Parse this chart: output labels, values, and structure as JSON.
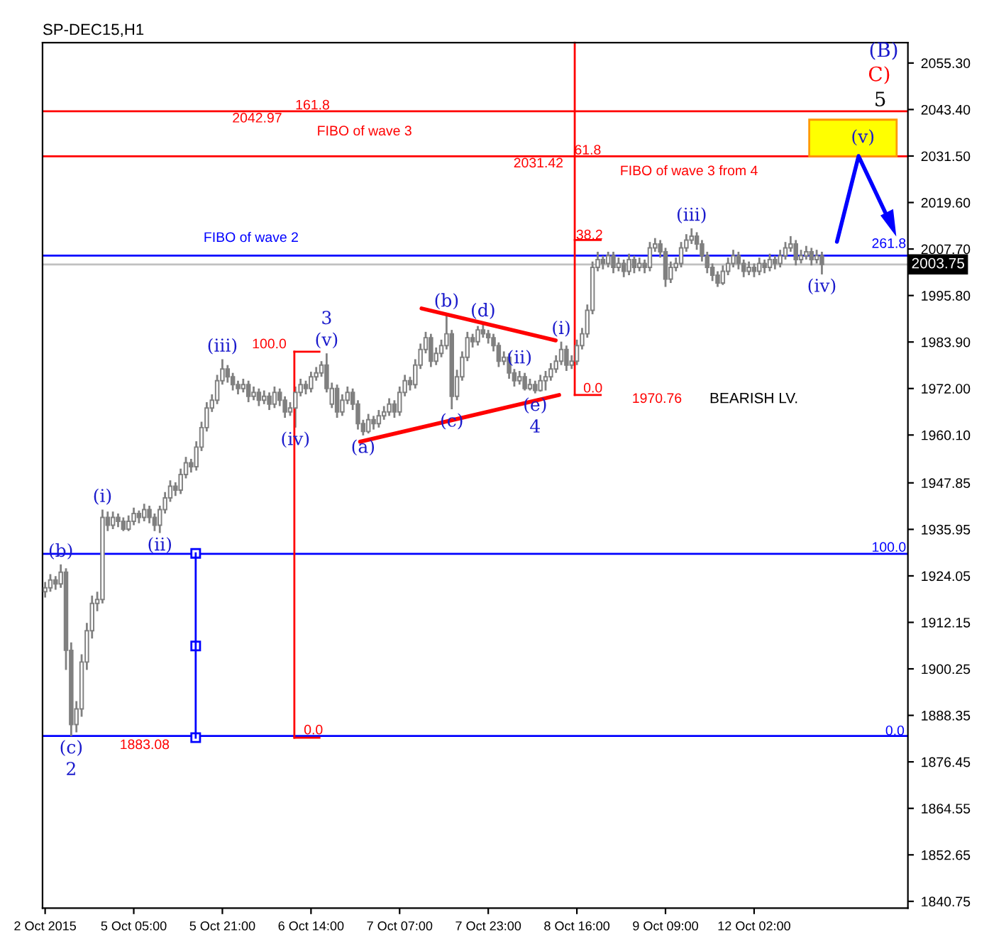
{
  "chart_data": {
    "type": "candlestick",
    "title": "SP-DEC15,H1",
    "color": "#808080",
    "categories": [
      "2 Oct 2015",
      null,
      null,
      null,
      null,
      null,
      null,
      null,
      null,
      null,
      null,
      null,
      null,
      null,
      null,
      null,
      null,
      "5 Oct 05:00",
      null,
      null,
      null,
      null,
      null,
      null,
      null,
      null,
      null,
      null,
      null,
      null,
      null,
      null,
      null,
      null,
      "5 Oct 21:00",
      null,
      null,
      null,
      null,
      null,
      null,
      null,
      null,
      null,
      null,
      null,
      null,
      null,
      null,
      null,
      null,
      "6 Oct 14:00",
      null,
      null,
      null,
      null,
      null,
      null,
      null,
      null,
      null,
      null,
      null,
      null,
      null,
      null,
      null,
      null,
      "7 Oct 07:00",
      null,
      null,
      null,
      null,
      null,
      null,
      null,
      null,
      null,
      null,
      null,
      null,
      null,
      null,
      null,
      null,
      "7 Oct 23:00",
      null,
      null,
      null,
      null,
      null,
      null,
      null,
      null,
      null,
      null,
      null,
      null,
      null,
      null,
      null,
      null,
      "8 Oct 16:00",
      null,
      null,
      null,
      null,
      null,
      null,
      null,
      null,
      null,
      null,
      null,
      null,
      null,
      null,
      null,
      null,
      "9 Oct 09:00",
      null,
      null,
      null,
      null,
      null,
      null,
      null,
      null,
      null,
      null,
      null,
      null,
      null,
      null,
      null,
      null,
      "12 Oct 02:00",
      null,
      null,
      null,
      null,
      null,
      null,
      null,
      null,
      null,
      null,
      null,
      null,
      null,
      null,
      null,
      null,
      null,
      null,
      null,
      null,
      null,
      null,
      null,
      null,
      null,
      null,
      null,
      null,
      null
    ],
    "ohlc": [
      [
        1920,
        1922.5,
        1918.5,
        1921
      ],
      [
        1921,
        1924.5,
        1920,
        1923
      ],
      [
        1923,
        1924,
        1920.5,
        1922
      ],
      [
        1922,
        1927,
        1921,
        1925
      ],
      [
        1925,
        1926,
        1900,
        1905
      ],
      [
        1905,
        1907,
        1883.08,
        1886
      ],
      [
        1886,
        1892,
        1884,
        1890
      ],
      [
        1890,
        1904,
        1888,
        1902
      ],
      [
        1902,
        1912,
        1900,
        1910
      ],
      [
        1910,
        1919,
        1908,
        1917
      ],
      [
        1917,
        1920,
        1915,
        1918
      ],
      [
        1918,
        1941,
        1917,
        1939
      ],
      [
        1939,
        1940.5,
        1935.5,
        1937
      ],
      [
        1937,
        1940.5,
        1936,
        1939
      ],
      [
        1939,
        1940,
        1936.5,
        1938
      ],
      [
        1938,
        1939,
        1935.5,
        1936
      ],
      [
        1936,
        1939.5,
        1935.5,
        1938
      ],
      [
        1938,
        1941.5,
        1937,
        1940
      ],
      [
        1940,
        1940.8,
        1937.5,
        1939
      ],
      [
        1939,
        1942.5,
        1938,
        1941
      ],
      [
        1941,
        1942,
        1937.5,
        1939
      ],
      [
        1939,
        1940,
        1935.5,
        1937
      ],
      [
        1937,
        1942,
        1935,
        1941
      ],
      [
        1941,
        1945.5,
        1940,
        1944
      ],
      [
        1944,
        1948.5,
        1943,
        1947
      ],
      [
        1947,
        1948,
        1944.5,
        1946
      ],
      [
        1946,
        1951.5,
        1945,
        1950
      ],
      [
        1950,
        1954.5,
        1949,
        1953
      ],
      [
        1953,
        1954,
        1950.5,
        1952
      ],
      [
        1952,
        1958.5,
        1951,
        1957
      ],
      [
        1957,
        1963.5,
        1956,
        1962
      ],
      [
        1962,
        1968.5,
        1961,
        1967
      ],
      [
        1967,
        1970.5,
        1966,
        1969
      ],
      [
        1969,
        1975.5,
        1968,
        1974
      ],
      [
        1974,
        1979.5,
        1973,
        1977
      ],
      [
        1977,
        1978,
        1973.5,
        1975
      ],
      [
        1975,
        1976,
        1971.5,
        1973
      ],
      [
        1973,
        1974,
        1970.5,
        1972
      ],
      [
        1972,
        1974.5,
        1971,
        1973
      ],
      [
        1973,
        1974,
        1968.5,
        1970
      ],
      [
        1970,
        1972.5,
        1969,
        1971
      ],
      [
        1971,
        1972,
        1967.5,
        1969
      ],
      [
        1969,
        1971.5,
        1968,
        1970
      ],
      [
        1970,
        1971,
        1966.5,
        1968
      ],
      [
        1968,
        1972.5,
        1967,
        1971
      ],
      [
        1971,
        1972,
        1967.5,
        1969
      ],
      [
        1969,
        1970,
        1964.5,
        1966
      ],
      [
        1966,
        1968.5,
        1965,
        1967
      ],
      [
        1967,
        1972.5,
        1962,
        1971
      ],
      [
        1971,
        1974.5,
        1970,
        1973
      ],
      [
        1973,
        1974,
        1970.5,
        1972
      ],
      [
        1972,
        1976.3,
        1971,
        1975
      ],
      [
        1975,
        1977.5,
        1974,
        1976
      ],
      [
        1976,
        1979,
        1975,
        1978
      ],
      [
        1978,
        1981,
        1971,
        1972
      ],
      [
        1968,
        1973.5,
        1967,
        1972
      ],
      [
        1972,
        1973,
        1964.5,
        1966
      ],
      [
        1966,
        1970.5,
        1965,
        1969
      ],
      [
        1969,
        1972.5,
        1968,
        1971
      ],
      [
        1971,
        1972,
        1966.5,
        1968
      ],
      [
        1968,
        1969,
        1961.5,
        1963
      ],
      [
        1963,
        1964,
        1960,
        1961
      ],
      [
        1961,
        1965.5,
        1960.5,
        1964
      ],
      [
        1964,
        1965,
        1961.5,
        1963
      ],
      [
        1963,
        1966.5,
        1962,
        1965
      ],
      [
        1965,
        1967.5,
        1964,
        1966
      ],
      [
        1966,
        1969.5,
        1965,
        1968
      ],
      [
        1968,
        1969,
        1964.5,
        1966
      ],
      [
        1966,
        1972.5,
        1965,
        1971
      ],
      [
        1971,
        1975.5,
        1970,
        1974
      ],
      [
        1974,
        1975,
        1971.5,
        1973
      ],
      [
        1973,
        1979.5,
        1972,
        1978
      ],
      [
        1978,
        1983.5,
        1977,
        1982
      ],
      [
        1982,
        1986.5,
        1981,
        1985
      ],
      [
        1985,
        1986,
        1977.5,
        1979
      ],
      [
        1979,
        1982.5,
        1978,
        1981
      ],
      [
        1981,
        1984.5,
        1980,
        1983
      ],
      [
        1983,
        1991,
        1982,
        1986
      ],
      [
        1986,
        1987,
        1966.7,
        1970
      ],
      [
        1970,
        1976.8,
        1969,
        1975
      ],
      [
        1975,
        1981.5,
        1974,
        1980
      ],
      [
        1980,
        1986.5,
        1979,
        1985
      ],
      [
        1985,
        1986,
        1982.5,
        1984
      ],
      [
        1984,
        1988,
        1983,
        1987
      ],
      [
        1987,
        1988.5,
        1985,
        1986
      ],
      [
        1986,
        1987,
        1983.5,
        1985
      ],
      [
        1985,
        1986,
        1981.5,
        1983
      ],
      [
        1983,
        1983.8,
        1977.5,
        1979
      ],
      [
        1979,
        1981.5,
        1978,
        1980
      ],
      [
        1980,
        1981,
        1974.5,
        1976
      ],
      [
        1976,
        1977,
        1972.5,
        1974
      ],
      [
        1974,
        1976.5,
        1973,
        1975
      ],
      [
        1975,
        1976,
        1971.5,
        1972
      ],
      [
        1972,
        1974.5,
        1971.5,
        1973
      ],
      [
        1973,
        1974,
        1970.76,
        1971.5
      ],
      [
        1971.5,
        1975.5,
        1971.2,
        1974
      ],
      [
        1974,
        1976.5,
        1971.5,
        1975
      ],
      [
        1975,
        1978.5,
        1974,
        1977
      ],
      [
        1977,
        1980.5,
        1976,
        1979
      ],
      [
        1979,
        1984,
        1978,
        1982
      ],
      [
        1982,
        1983,
        1976.5,
        1978
      ],
      [
        1978,
        1980.5,
        1977,
        1979
      ],
      [
        1979,
        1984.5,
        1978,
        1983
      ],
      [
        1983,
        1987.5,
        1982,
        1986
      ],
      [
        1986,
        1993.5,
        1985,
        1992
      ],
      [
        1992,
        2004.5,
        1991,
        2003
      ],
      [
        2003,
        2007,
        2002,
        2005
      ],
      [
        2005,
        2006,
        2002.5,
        2004
      ],
      [
        2004,
        2007,
        2003,
        2006
      ],
      [
        2006,
        2007,
        2001.5,
        2003
      ],
      [
        2003,
        2005.5,
        2002,
        2004
      ],
      [
        2004,
        2005,
        2000.5,
        2002
      ],
      [
        2002,
        2006.5,
        2001,
        2005
      ],
      [
        2005,
        2006,
        2001.5,
        2003
      ],
      [
        2003,
        2005.5,
        2002,
        2004
      ],
      [
        2004,
        2005,
        2001.5,
        2003
      ],
      [
        2003,
        2009.5,
        2002,
        2008
      ],
      [
        2008,
        2010.5,
        2007,
        2009
      ],
      [
        2009,
        2010,
        2005.5,
        2007
      ],
      [
        2007,
        2008,
        1998,
        2000
      ],
      [
        2000,
        2004.5,
        1999,
        2003
      ],
      [
        2003,
        2005.5,
        2002,
        2004
      ],
      [
        2004,
        2009.5,
        2003,
        2008
      ],
      [
        2008,
        2011.5,
        2007,
        2010
      ],
      [
        2010,
        2013,
        2009,
        2011
      ],
      [
        2011,
        2012,
        2007.5,
        2009
      ],
      [
        2009,
        2010,
        2004.5,
        2006
      ],
      [
        2006,
        2007,
        2001.5,
        2003
      ],
      [
        2003,
        2004,
        1999.5,
        2001
      ],
      [
        2001,
        2002,
        1998,
        1999
      ],
      [
        1999,
        2003.5,
        1998.5,
        2002
      ],
      [
        2002,
        2005.5,
        2001,
        2004
      ],
      [
        2004,
        2007.5,
        2003,
        2006
      ],
      [
        2006,
        2007,
        2002.5,
        2004
      ],
      [
        2004,
        2005,
        2000.5,
        2002
      ],
      [
        2002,
        2004.5,
        2001,
        2003
      ],
      [
        2003,
        2004,
        2000.5,
        2002
      ],
      [
        2002,
        2005.5,
        2001,
        2004
      ],
      [
        2004,
        2005,
        2001.5,
        2003
      ],
      [
        2003,
        2006.5,
        2002,
        2005
      ],
      [
        2005,
        2006,
        2002.5,
        2004
      ],
      [
        2004,
        2007.5,
        2003,
        2006
      ],
      [
        2006,
        2009.5,
        2005,
        2008
      ],
      [
        2008,
        2011,
        2007,
        2009
      ],
      [
        2009,
        2010,
        2003.5,
        2005
      ],
      [
        2005,
        2007.5,
        2004,
        2006
      ],
      [
        2006,
        2008.5,
        2005,
        2007
      ],
      [
        2007,
        2008,
        2003.5,
        2005
      ],
      [
        2005,
        2007.5,
        2004,
        2006
      ],
      [
        2006,
        2007,
        2001.2,
        2003.75
      ],
      null,
      null,
      null,
      null,
      null,
      null,
      null,
      null,
      null,
      null,
      null,
      null,
      null,
      null,
      null,
      null
    ],
    "ref_lines": [
      {
        "axis": "y",
        "value": 2042.97,
        "label": null,
        "color": "#ff0000"
      },
      {
        "axis": "y",
        "value": 2031.42,
        "label": null,
        "color": "#ff0000"
      },
      {
        "axis": "y",
        "value": 2006,
        "label": null,
        "color": "#0000ff"
      },
      {
        "axis": "y",
        "value": 2003.75,
        "label": "2003.75",
        "color": "#c0c0c0"
      },
      {
        "axis": "y",
        "value": 1929.7,
        "label": null,
        "color": "#0000ff"
      },
      {
        "axis": "y",
        "value": 1883.08,
        "label": null,
        "color": "#0000ff"
      }
    ],
    "bands": [
      {
        "axis": "y",
        "from": 2031.42,
        "to": 2040.8,
        "label": null,
        "color": "#ffff00"
      }
    ],
    "annotations": [
      {
        "text": "(b)",
        "y": 1927
      },
      {
        "text": "(c)",
        "y": 1883.08
      },
      {
        "text": "2",
        "y": 1883.08
      },
      {
        "text": "(i)",
        "y": 1941
      },
      {
        "text": "(ii)",
        "y": 1935
      },
      {
        "text": "(iii)",
        "y": 1979.5
      },
      {
        "text": "(iv)",
        "y": 1962
      },
      {
        "text": "(v)",
        "y": 1981
      },
      {
        "text": "3",
        "y": 1981
      },
      {
        "text": "(a)",
        "y": 1960
      },
      {
        "text": "(b)",
        "y": 1991
      },
      {
        "text": "(c)",
        "y": 1966.7
      },
      {
        "text": "(d)",
        "y": 1988.5
      },
      {
        "text": "(e)",
        "y": 1970.76
      },
      {
        "text": "4",
        "y": 1970.76
      },
      {
        "text": "(i)",
        "y": 1984
      },
      {
        "text": "(ii)",
        "y": 1976.5
      },
      {
        "text": "(iii)",
        "y": 2013
      },
      {
        "text": "(iv)",
        "y": 2001.2
      },
      "(v)",
      "5",
      "C)",
      "(B)",
      "2042.97",
      "161.8",
      "FIBO of wave 3",
      "2031.42",
      "61.8",
      "FIBO of wave 3 from 4",
      "FIBO of wave 2",
      "38.2",
      "261.8",
      "100.0",
      "0.0",
      "100.0",
      "0.0",
      "0.0",
      "1970.76",
      "1883.08",
      "BEARISH LV."
    ],
    "ylim": [
      1839,
      2060.5
    ],
    "yticks": [
      {
        "value": 2055.3,
        "label": "2055.30"
      },
      {
        "value": 2043.4,
        "label": "2043.40"
      },
      {
        "value": 2031.5,
        "label": "2031.50"
      },
      {
        "value": 2019.6,
        "label": "2019.60"
      },
      {
        "value": 2007.7,
        "label": "2007.70"
      },
      {
        "value": 1995.8,
        "label": "1995.80"
      },
      {
        "value": 1983.9,
        "label": "1983.90"
      },
      {
        "value": 1972,
        "label": "1972.00"
      },
      {
        "value": 1960.1,
        "label": "1960.10"
      },
      {
        "value": 1947.85,
        "label": "1947.85"
      },
      {
        "value": 1935.95,
        "label": "1935.95"
      },
      {
        "value": 1924.05,
        "label": "1924.05"
      },
      {
        "value": 1912.15,
        "label": "1912.15"
      },
      {
        "value": 1900.25,
        "label": "1900.25"
      },
      {
        "value": 1888.35,
        "label": "1888.35"
      },
      {
        "value": 1876.45,
        "label": "1876.45"
      },
      {
        "value": 1864.55,
        "label": "1864.55"
      },
      {
        "value": 1852.65,
        "label": "1852.65"
      },
      {
        "value": 1840.75,
        "label": "1840.75"
      }
    ]
  }
}
